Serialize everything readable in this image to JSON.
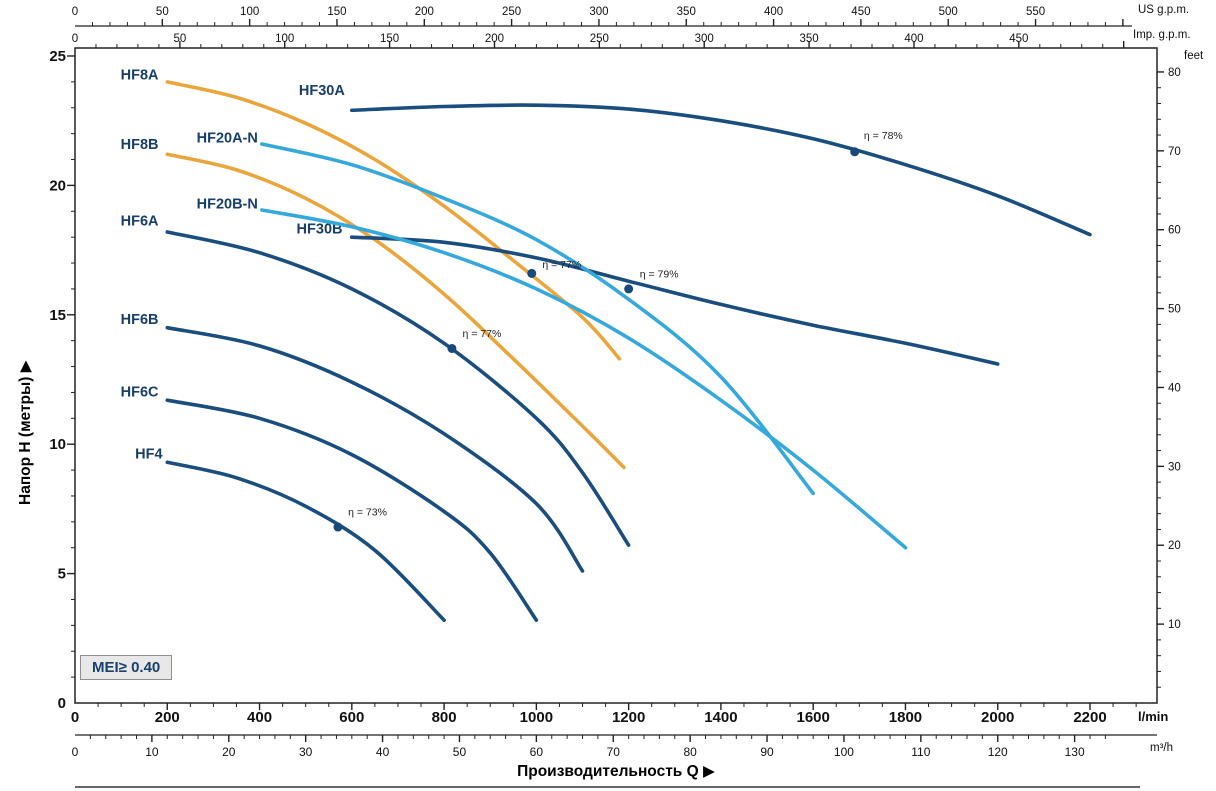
{
  "labels": {
    "y_title": "Напор H (метры)  ▶",
    "x_title": "Производительность Q  ▶",
    "us": "US g.p.m.",
    "imp": "Imp. g.p.m.",
    "feet": "feet",
    "lmin": "l/min",
    "m3h": "m³/h",
    "mei": "MEI≥ 0.40"
  },
  "axes": {
    "y_left": {
      "title": "Напор H (метры)",
      "unit": "м",
      "ticks": [
        0,
        5,
        10,
        15,
        20,
        25
      ],
      "minor_step": 1,
      "range": [
        0,
        25.3
      ]
    },
    "y_right": {
      "unit": "feet",
      "ticks": [
        10,
        20,
        30,
        40,
        50,
        60,
        70,
        80
      ],
      "minor_step": 2,
      "m_per_foot": 0.3048
    },
    "x_lmin": {
      "unit": "l/min",
      "ticks": [
        0,
        200,
        400,
        600,
        800,
        1000,
        1200,
        1400,
        1600,
        1800,
        2000,
        2200
      ],
      "minor_step": 50
    },
    "x_m3h": {
      "unit": "m³/h",
      "ticks": [
        0,
        10,
        20,
        30,
        40,
        50,
        60,
        70,
        80,
        90,
        100,
        110,
        120,
        130
      ],
      "minor_step": 2,
      "lmin_per_unit": 16.6667
    },
    "x_usgpm": {
      "unit": "US g.p.m.",
      "ticks": [
        0,
        50,
        100,
        150,
        200,
        250,
        300,
        350,
        400,
        450,
        500,
        550
      ],
      "minor_step": 10,
      "lmin_per_unit": 3.78541
    },
    "x_impgpm": {
      "unit": "Imp. g.p.m.",
      "ticks": [
        0,
        50,
        100,
        150,
        200,
        250,
        300,
        350,
        400,
        450
      ],
      "minor_step": 10,
      "lmin_per_unit": 4.54609
    }
  },
  "chart_data": {
    "type": "line",
    "title": "",
    "xlabel": "Производительность Q",
    "ylabel": "Напор H (метры)",
    "x_unit": "l/min",
    "y_unit": "m",
    "xlim": [
      0,
      2345
    ],
    "ylim": [
      0,
      25.3
    ],
    "grid": false,
    "mei_note": "MEI≥ 0.40",
    "colors": {
      "dark_blue": "#1A4E7E",
      "light_blue": "#35A8DC",
      "orange": "#EAA63C",
      "marker": "#17497A"
    },
    "series": [
      {
        "name": "HF8A",
        "color": "#EAA63C",
        "points": [
          [
            200,
            24.0
          ],
          [
            350,
            23.4
          ],
          [
            500,
            22.4
          ],
          [
            650,
            21.0
          ],
          [
            800,
            19.2
          ],
          [
            950,
            17.1
          ],
          [
            1100,
            14.9
          ],
          [
            1180,
            13.3
          ]
        ],
        "label": {
          "text": "HF8A",
          "x": 140,
          "y": 24.1
        }
      },
      {
        "name": "HF8B",
        "color": "#EAA63C",
        "points": [
          [
            200,
            21.2
          ],
          [
            350,
            20.6
          ],
          [
            500,
            19.5
          ],
          [
            650,
            17.9
          ],
          [
            800,
            15.8
          ],
          [
            950,
            13.3
          ],
          [
            1100,
            10.7
          ],
          [
            1190,
            9.1
          ]
        ],
        "label": {
          "text": "HF8B",
          "x": 140,
          "y": 21.4
        }
      },
      {
        "name": "HF30A",
        "color": "#1A4E7E",
        "points": [
          [
            600,
            22.9
          ],
          [
            800,
            23.05
          ],
          [
            1000,
            23.1
          ],
          [
            1200,
            22.95
          ],
          [
            1400,
            22.5
          ],
          [
            1600,
            21.8
          ],
          [
            1800,
            20.8
          ],
          [
            2000,
            19.6
          ],
          [
            2200,
            18.1
          ]
        ],
        "label": {
          "text": "HF30A",
          "x": 535,
          "y": 23.5
        }
      },
      {
        "name": "HF30B",
        "color": "#1A4E7E",
        "points": [
          [
            600,
            18.0
          ],
          [
            800,
            17.8
          ],
          [
            1000,
            17.2
          ],
          [
            1200,
            16.3
          ],
          [
            1400,
            15.4
          ],
          [
            1600,
            14.6
          ],
          [
            1800,
            13.9
          ],
          [
            2000,
            13.1
          ]
        ],
        "label": {
          "text": "HF30B",
          "x": 530,
          "y": 18.15
        }
      },
      {
        "name": "HF20A-N",
        "color": "#35A8DC",
        "points": [
          [
            405,
            21.6
          ],
          [
            600,
            20.8
          ],
          [
            800,
            19.5
          ],
          [
            1000,
            17.9
          ],
          [
            1200,
            15.6
          ],
          [
            1400,
            12.6
          ],
          [
            1600,
            8.1
          ]
        ],
        "label": {
          "text": "HF20A-N",
          "x": 330,
          "y": 21.65
        }
      },
      {
        "name": "HF20B-N",
        "color": "#35A8DC",
        "points": [
          [
            405,
            19.05
          ],
          [
            600,
            18.4
          ],
          [
            800,
            17.4
          ],
          [
            1000,
            16.0
          ],
          [
            1200,
            14.1
          ],
          [
            1400,
            11.7
          ],
          [
            1600,
            9.0
          ],
          [
            1800,
            6.0
          ]
        ],
        "label": {
          "text": "HF20B-N",
          "x": 330,
          "y": 19.1
        }
      },
      {
        "name": "HF6A",
        "color": "#1A4E7E",
        "points": [
          [
            200,
            18.2
          ],
          [
            400,
            17.4
          ],
          [
            600,
            16.0
          ],
          [
            800,
            13.9
          ],
          [
            1000,
            11.0
          ],
          [
            1100,
            8.9
          ],
          [
            1200,
            6.1
          ]
        ],
        "label": {
          "text": "HF6A",
          "x": 140,
          "y": 18.45
        }
      },
      {
        "name": "HF6B",
        "color": "#1A4E7E",
        "points": [
          [
            200,
            14.5
          ],
          [
            400,
            13.8
          ],
          [
            600,
            12.4
          ],
          [
            800,
            10.4
          ],
          [
            1000,
            7.7
          ],
          [
            1100,
            5.1
          ]
        ],
        "label": {
          "text": "HF6B",
          "x": 140,
          "y": 14.65
        }
      },
      {
        "name": "HF6C",
        "color": "#1A4E7E",
        "points": [
          [
            200,
            11.7
          ],
          [
            400,
            11.0
          ],
          [
            600,
            9.6
          ],
          [
            800,
            7.4
          ],
          [
            900,
            5.8
          ],
          [
            1000,
            3.2
          ]
        ],
        "label": {
          "text": "HF6C",
          "x": 140,
          "y": 11.85
        }
      },
      {
        "name": "HF4",
        "color": "#1A4E7E",
        "points": [
          [
            200,
            9.3
          ],
          [
            350,
            8.7
          ],
          [
            500,
            7.6
          ],
          [
            650,
            5.9
          ],
          [
            800,
            3.2
          ]
        ],
        "label": {
          "text": "HF4",
          "x": 160,
          "y": 9.45
        }
      }
    ],
    "markers": [
      {
        "x": 1690,
        "y": 21.3,
        "label": "η = 78%",
        "lx": 1710,
        "ly": 21.8
      },
      {
        "x": 990,
        "y": 16.6,
        "label": "η = 77%",
        "lx": 1013,
        "ly": 16.8
      },
      {
        "x": 1200,
        "y": 16.0,
        "label": "η = 79%",
        "lx": 1224,
        "ly": 16.45
      },
      {
        "x": 817,
        "y": 13.7,
        "label": "η = 77%",
        "lx": 840,
        "ly": 14.15
      },
      {
        "x": 570,
        "y": 6.8,
        "label": "η = 73%",
        "lx": 592,
        "ly": 7.25
      }
    ]
  }
}
